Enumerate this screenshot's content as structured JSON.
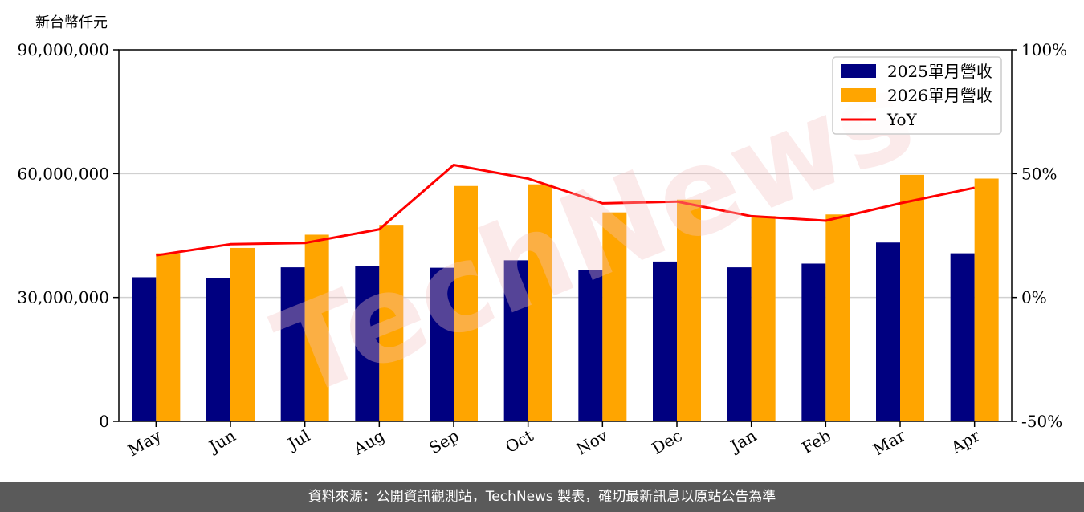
{
  "chart_data": {
    "type": "bar",
    "ylabel": "新台幣仟元",
    "categories": [
      "May",
      "Jun",
      "Jul",
      "Aug",
      "Sep",
      "Oct",
      "Nov",
      "Dec",
      "Jan",
      "Feb",
      "Mar",
      "Apr"
    ],
    "series": [
      {
        "name": "2025單月營收",
        "type": "bar",
        "color": "#000080",
        "axis": "left",
        "values": [
          34900000,
          34700000,
          37300000,
          37700000,
          37200000,
          39000000,
          36700000,
          38700000,
          37300000,
          38200000,
          43300000,
          40700000
        ]
      },
      {
        "name": "2026單月營收",
        "type": "bar",
        "color": "#ffa500",
        "axis": "left",
        "values": [
          40700000,
          42000000,
          45200000,
          47600000,
          57000000,
          57400000,
          50600000,
          53700000,
          49700000,
          50100000,
          59700000,
          58800000
        ]
      },
      {
        "name": "YoY",
        "type": "line",
        "color": "#ff0000",
        "axis": "right",
        "values": [
          17,
          21.5,
          22,
          27.5,
          53.5,
          48,
          38,
          38.7,
          32.8,
          31,
          38,
          44.3
        ]
      }
    ],
    "ylim": [
      0,
      90000000
    ],
    "yticks": [
      "0",
      "30,000,000",
      "60,000,000",
      "90,000,000"
    ],
    "ytick_values": [
      0,
      30000000,
      60000000,
      90000000
    ],
    "y2lim": [
      -50,
      100
    ],
    "y2ticks": [
      "-50%",
      "0%",
      "50%",
      "100%"
    ],
    "y2tick_values": [
      -50,
      0,
      50,
      100
    ],
    "grid": true,
    "legend_position": "top-right"
  },
  "watermark": "TechNews",
  "footer": "資料來源：公開資訊觀測站，TechNews 製表，確切最新訊息以原站公告為準"
}
